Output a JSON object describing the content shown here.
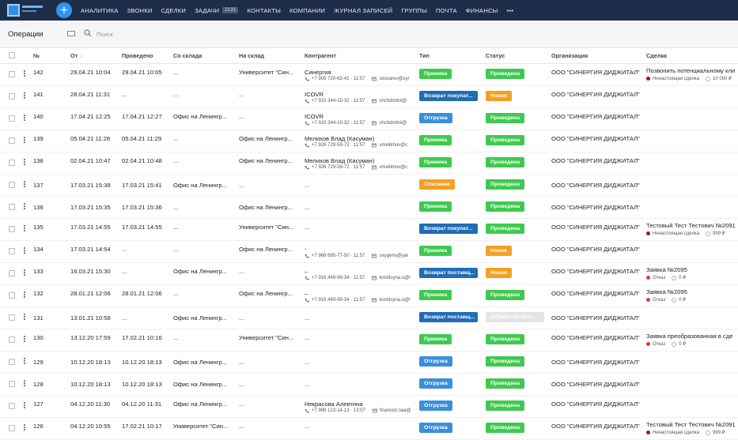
{
  "nav": {
    "items": [
      "АНАЛИТИКА",
      "ЗВОНКИ",
      "СДЕЛКИ",
      "ЗАДАЧИ",
      "КОНТАКТЫ",
      "КОМПАНИИ",
      "ЖУРНАЛ ЗАПИСЕЙ",
      "ГРУППЫ",
      "ПОЧТА",
      "ФИНАНСЫ"
    ],
    "tasks_badge": "2131",
    "more": "•••"
  },
  "toolbar": {
    "title": "Операции",
    "search_placeholder": "Поиск"
  },
  "table": {
    "headers": [
      "№",
      "От",
      "Проведено",
      "Со склада",
      "На склад",
      "Контрагент",
      "Тип",
      "Статус",
      "Организация",
      "Сделка"
    ],
    "rows": [
      {
        "num": "142",
        "from": "29.04.21 10:04",
        "done": "29.04.21 10:05",
        "from_wh": "...",
        "to_wh": "Университет \"Син...",
        "contractor": {
          "name": "Синергия",
          "phone": "+7 905 720-62-41 · 11:57",
          "email": "skosarev@syr"
        },
        "type": {
          "label": "Приемка",
          "color": "#3fc94f"
        },
        "status": {
          "label": "Проведена",
          "color": "#3fc94f"
        },
        "org": "ООО \"СИНЕРГИЯ ДИДЖИТАЛ\"",
        "deal": {
          "name": "Позвонить потенциальному кли",
          "state": "Ненастоящая сделка",
          "dot": "#a31515",
          "amount": "10 000 ₽"
        }
      },
      {
        "num": "141",
        "from": "28.04.21 11:31",
        "done": "...",
        "from_wh": "...",
        "to_wh": "...",
        "contractor": {
          "name": "ICOVR",
          "phone": "+7 915 344-15-32 · 11:57",
          "email": "shchdmitrii@"
        },
        "type": {
          "label": "Возврат покупат...",
          "color": "#1f6db5"
        },
        "status": {
          "label": "Новая",
          "color": "#f2a024"
        },
        "org": "ООО \"СИНЕРГИЯ ДИДЖИТАЛ\""
      },
      {
        "num": "140",
        "from": "17.04.21 12:25",
        "done": "17.04.21 12:27",
        "from_wh": "Офис на Ленингр...",
        "to_wh": "...",
        "contractor": {
          "name": "ICOVR",
          "phone": "+7 915 344-15-32 · 11:57",
          "email": "shchdmitrii@"
        },
        "type": {
          "label": "Отгрузка",
          "color": "#3a8edb"
        },
        "status": {
          "label": "Проведена",
          "color": "#3fc94f"
        },
        "org": "ООО \"СИНЕРГИЯ ДИДЖИТАЛ\""
      },
      {
        "num": "139",
        "from": "05.04.21 11:28",
        "done": "05.04.21 11:29",
        "from_wh": "...",
        "to_wh": "Офис на Ленингр...",
        "contractor": {
          "name": "Мелихов Влад (Касуман)",
          "phone": "+7 926 729-59-72 · 11:57",
          "email": "vmelikhov@c"
        },
        "type": {
          "label": "Приемка",
          "color": "#3fc94f"
        },
        "status": {
          "label": "Проведена",
          "color": "#3fc94f"
        },
        "org": "ООО \"СИНЕРГИЯ ДИДЖИТАЛ\""
      },
      {
        "num": "138",
        "from": "02.04.21 10:47",
        "done": "02.04.21 10:48",
        "from_wh": "...",
        "to_wh": "Офис на Ленингр...",
        "contractor": {
          "name": "Мелихов Влад (Касуман)",
          "phone": "+7 926 729-59-72 · 11:57",
          "email": "vmelikhov@c"
        },
        "type": {
          "label": "Приемка",
          "color": "#3fc94f"
        },
        "status": {
          "label": "Проведена",
          "color": "#3fc94f"
        },
        "org": "ООО \"СИНЕРГИЯ ДИДЖИТАЛ\""
      },
      {
        "num": "137",
        "from": "17.03.21 15:38",
        "done": "17.03.21 15:41",
        "from_wh": "Офис на Ленингр...",
        "to_wh": "...",
        "contractor": {
          "name": "..."
        },
        "type": {
          "label": "Списание",
          "color": "#f2a024"
        },
        "status": {
          "label": "Проведена",
          "color": "#3fc94f"
        },
        "org": "ООО \"СИНЕРГИЯ ДИДЖИТАЛ\""
      },
      {
        "num": "136",
        "from": "17.03.21 15:35",
        "done": "17.03.21 15:36",
        "from_wh": "...",
        "to_wh": "Офис на Ленингр...",
        "contractor": {
          "name": "..."
        },
        "type": {
          "label": "Приемка",
          "color": "#3fc94f"
        },
        "status": {
          "label": "Проведена",
          "color": "#3fc94f"
        },
        "org": "ООО \"СИНЕРГИЯ ДИДЖИТАЛ\""
      },
      {
        "num": "135",
        "from": "17.03.21 14:55",
        "done": "17.03.21 14:55",
        "from_wh": "...",
        "to_wh": "Университет \"Син...",
        "contractor": {
          "name": "..."
        },
        "type": {
          "label": "Возврат покупат...",
          "color": "#1f6db5"
        },
        "status": {
          "label": "Проведена",
          "color": "#3fc94f"
        },
        "org": "ООО \"СИНЕРГИЯ ДИДЖИТАЛ\"",
        "deal": {
          "name": "Тестовый Тест Тестович №2091",
          "state": "Ненастоящая сделка",
          "dot": "#a31515",
          "amount": "999 ₽"
        }
      },
      {
        "num": "134",
        "from": "17.03.21 14:54",
        "done": "...",
        "from_wh": "...",
        "to_wh": "Офис на Ленингр...",
        "contractor": {
          "name": "-",
          "phone": "+7 968 895-77-50 · 11:57",
          "email": "oxygens@yar"
        },
        "type": {
          "label": "Приемка",
          "color": "#3fc94f"
        },
        "status": {
          "label": "Новая",
          "color": "#f2a024"
        },
        "org": "ООО \"СИНЕРГИЯ ДИДЖИТАЛ\""
      },
      {
        "num": "133",
        "from": "16.03.21 15:30",
        "done": "...",
        "from_wh": "Офис на Ленингр...",
        "to_wh": "...",
        "contractor": {
          "name": "–",
          "phone": "+7 916 449-99-34 · 11:57",
          "email": "kostitsyna.o@l"
        },
        "type": {
          "label": "Возврат поставщ...",
          "color": "#1f6db5"
        },
        "status": {
          "label": "Новая",
          "color": "#f2a024"
        },
        "org": "ООО \"СИНЕРГИЯ ДИДЖИТАЛ\"",
        "deal": {
          "name": "Заявка №2095",
          "state": "Отказ",
          "dot": "#e53935",
          "amount": "0 ₽"
        }
      },
      {
        "num": "132",
        "from": "28.01.21 12:06",
        "done": "28.01.21 12:06",
        "from_wh": "...",
        "to_wh": "Офис на Ленингр...",
        "contractor": {
          "name": "–",
          "phone": "+7 916 449-99-34 · 11:57",
          "email": "kostitsyna.o@l"
        },
        "type": {
          "label": "Приемка",
          "color": "#3fc94f"
        },
        "status": {
          "label": "Проведена",
          "color": "#3fc94f"
        },
        "org": "ООО \"СИНЕРГИЯ ДИДЖИТАЛ\"",
        "deal": {
          "name": "Заявка №2095",
          "state": "Отказ",
          "dot": "#e53935",
          "amount": "0 ₽"
        }
      },
      {
        "num": "131",
        "from": "13.01.21 10:58",
        "done": "...",
        "from_wh": "Офис на Ленингр...",
        "to_wh": "...",
        "contractor": {
          "name": "..."
        },
        "type": {
          "label": "Возврат поставщ...",
          "color": "#1f6db5"
        },
        "status": {
          "label": "Обработка про...",
          "color": "#e4e4e4"
        },
        "org": "ООО \"СИНЕРГИЯ ДИДЖИТАЛ\""
      },
      {
        "num": "130",
        "from": "13.12.20 17:59",
        "done": "17.02.21 10:16",
        "from_wh": "...",
        "to_wh": "Университет \"Син...",
        "contractor": {
          "name": "..."
        },
        "type": {
          "label": "Приемка",
          "color": "#3fc94f"
        },
        "status": {
          "label": "Проведена",
          "color": "#3fc94f"
        },
        "org": "ООО \"СИНЕРГИЯ ДИДЖИТАЛ\"",
        "deal": {
          "name": "Заявка преобразованная в сде",
          "state": "Отказ",
          "dot": "#e53935",
          "amount": "0 ₽"
        }
      },
      {
        "num": "129",
        "from": "10.12.20 18:13",
        "done": "10.12.20 18:13",
        "from_wh": "Офис на Ленингр...",
        "to_wh": "...",
        "contractor": {
          "name": "..."
        },
        "type": {
          "label": "Отгрузка",
          "color": "#3a8edb"
        },
        "status": {
          "label": "Проведена",
          "color": "#3fc94f"
        },
        "org": "ООО \"СИНЕРГИЯ ДИДЖИТАЛ\""
      },
      {
        "num": "128",
        "from": "10.12.20 18:13",
        "done": "10.12.20 18:13",
        "from_wh": "Офис на Ленингр...",
        "to_wh": "...",
        "contractor": {
          "name": "..."
        },
        "type": {
          "label": "Отгрузка",
          "color": "#3a8edb"
        },
        "status": {
          "label": "Проведена",
          "color": "#3fc94f"
        },
        "org": "ООО \"СИНЕРГИЯ ДИДЖИТАЛ\""
      },
      {
        "num": "127",
        "from": "04.12.20 11:30",
        "done": "04.12.20 11:31",
        "from_wh": "Офис на Ленингр...",
        "to_wh": "...",
        "contractor": {
          "name": "Некрасова Алевтина",
          "phone": "+7 999 123-14-13 · 13:57",
          "email": "finansist.naa@"
        },
        "type": {
          "label": "Отгрузка",
          "color": "#3a8edb"
        },
        "status": {
          "label": "Проведена",
          "color": "#3fc94f"
        },
        "org": "ООО \"СИНЕРГИЯ ДИДЖИТАЛ\""
      },
      {
        "num": "126",
        "from": "04.12.20 10:55",
        "done": "17.02.21 10:17",
        "from_wh": "Университет \"Син...",
        "to_wh": "...",
        "contractor": {
          "name": "..."
        },
        "type": {
          "label": "Отгрузка",
          "color": "#3a8edb"
        },
        "status": {
          "label": "Проведена",
          "color": "#3fc94f"
        },
        "org": "ООО \"СИНЕРГИЯ ДИДЖИТАЛ\"",
        "deal": {
          "name": "Тестовый Тест Тестович №2091",
          "state": "Ненастоящая сделка",
          "dot": "#a31515",
          "amount": "999 ₽"
        }
      }
    ]
  }
}
